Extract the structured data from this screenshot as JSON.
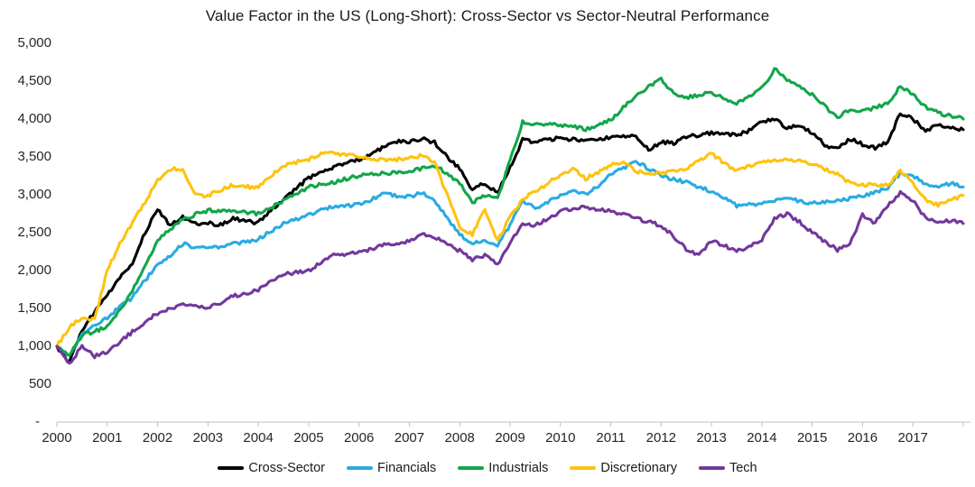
{
  "title": "Value Factor in the US (Long-Short): Cross-Sector vs Sector-Neutral Performance",
  "colors": {
    "background": "#ffffff",
    "axis_line": "#bfbfbf",
    "tick_label": "#262626",
    "title_text": "#1a1a1a"
  },
  "chart_data": {
    "type": "line",
    "title": "Value Factor in the US (Long-Short): Cross-Sector vs Sector-Neutral Performance",
    "xlabel": "",
    "ylabel": "",
    "grid": false,
    "noise_texture_amplitude": 24,
    "x_axis": {
      "start": 2000,
      "step": 0.25,
      "range": [
        2000,
        2018
      ],
      "tick_labels": [
        "2000",
        "2001",
        "2002",
        "2003",
        "2004",
        "2005",
        "2006",
        "2007",
        "2008",
        "2009",
        "2010",
        "2011",
        "2012",
        "2013",
        "2014",
        "2015",
        "2016",
        "2017"
      ]
    },
    "y_axis": {
      "range": [
        0,
        5000
      ],
      "tick_labels": [
        "5,000",
        "4,500",
        "4,000",
        "3,500",
        "3,000",
        "2,500",
        "2,000",
        "1,500",
        "1,000",
        "500",
        "-"
      ],
      "tick_values": [
        5000,
        4500,
        4000,
        3500,
        3000,
        2500,
        2000,
        1500,
        1000,
        500,
        0
      ]
    },
    "legend": {
      "position": "bottom"
    },
    "series": [
      {
        "name": "Cross-Sector",
        "color": "#000000",
        "values": [
          1000,
          780,
          1225,
          1450,
          1680,
          1900,
          2080,
          2500,
          2810,
          2600,
          2700,
          2620,
          2630,
          2600,
          2690,
          2650,
          2630,
          2790,
          2930,
          3080,
          3225,
          3300,
          3370,
          3420,
          3465,
          3550,
          3630,
          3710,
          3700,
          3740,
          3690,
          3500,
          3345,
          3070,
          3150,
          3030,
          3350,
          3725,
          3700,
          3720,
          3750,
          3730,
          3725,
          3740,
          3750,
          3770,
          3785,
          3585,
          3700,
          3680,
          3760,
          3790,
          3820,
          3800,
          3785,
          3850,
          3965,
          4000,
          3880,
          3920,
          3820,
          3660,
          3605,
          3740,
          3665,
          3620,
          3690,
          4080,
          4000,
          3845,
          3925,
          3880,
          3860
        ]
      },
      {
        "name": "Financials",
        "color": "#29abe2",
        "values": [
          1000,
          870,
          1165,
          1280,
          1370,
          1520,
          1640,
          1870,
          2080,
          2180,
          2355,
          2300,
          2295,
          2320,
          2355,
          2380,
          2415,
          2520,
          2615,
          2680,
          2735,
          2800,
          2855,
          2860,
          2870,
          2940,
          3010,
          2985,
          2975,
          3030,
          2930,
          2700,
          2475,
          2355,
          2395,
          2340,
          2600,
          2915,
          2830,
          2900,
          2990,
          3040,
          3010,
          3120,
          3270,
          3350,
          3430,
          3350,
          3250,
          3200,
          3165,
          3100,
          3045,
          2950,
          2855,
          2870,
          2890,
          2920,
          2950,
          2920,
          2890,
          2900,
          2915,
          2950,
          2990,
          3040,
          3095,
          3285,
          3250,
          3150,
          3095,
          3150,
          3105
        ]
      },
      {
        "name": "Industrials",
        "color": "#12a64a",
        "values": [
          1000,
          900,
          1140,
          1200,
          1250,
          1480,
          1725,
          2060,
          2395,
          2540,
          2675,
          2740,
          2795,
          2790,
          2780,
          2765,
          2750,
          2830,
          2915,
          3010,
          3105,
          3135,
          3165,
          3210,
          3250,
          3270,
          3285,
          3300,
          3310,
          3350,
          3390,
          3280,
          3165,
          2900,
          2990,
          2950,
          3450,
          3965,
          3940,
          3930,
          3925,
          3900,
          3865,
          3920,
          3985,
          4150,
          4320,
          4420,
          4535,
          4330,
          4285,
          4320,
          4355,
          4280,
          4200,
          4300,
          4405,
          4660,
          4520,
          4420,
          4320,
          4170,
          4020,
          4130,
          4105,
          4150,
          4200,
          4440,
          4320,
          4165,
          4080,
          4040,
          4000
        ]
      },
      {
        "name": "Discretionary",
        "color": "#fec30f",
        "values": [
          1000,
          1250,
          1380,
          1350,
          2000,
          2350,
          2630,
          2900,
          3190,
          3340,
          3345,
          3000,
          2990,
          3060,
          3130,
          3110,
          3095,
          3240,
          3390,
          3430,
          3465,
          3550,
          3545,
          3530,
          3510,
          3480,
          3450,
          3465,
          3480,
          3520,
          3425,
          3000,
          2570,
          2475,
          2810,
          2400,
          2700,
          2950,
          3035,
          3150,
          3270,
          3345,
          3210,
          3300,
          3390,
          3440,
          3310,
          3290,
          3285,
          3320,
          3345,
          3450,
          3545,
          3420,
          3310,
          3380,
          3450,
          3460,
          3465,
          3440,
          3405,
          3340,
          3270,
          3150,
          3130,
          3130,
          3130,
          3310,
          3150,
          2930,
          2870,
          2940,
          2990
        ]
      },
      {
        "name": "Tech",
        "color": "#73389b",
        "values": [
          1000,
          760,
          1010,
          870,
          930,
          1060,
          1190,
          1320,
          1440,
          1500,
          1560,
          1530,
          1500,
          1580,
          1660,
          1700,
          1740,
          1870,
          1950,
          1975,
          2000,
          2100,
          2200,
          2220,
          2240,
          2290,
          2335,
          2360,
          2380,
          2480,
          2440,
          2350,
          2260,
          2150,
          2200,
          2080,
          2350,
          2630,
          2595,
          2690,
          2775,
          2820,
          2830,
          2810,
          2795,
          2740,
          2690,
          2640,
          2595,
          2450,
          2280,
          2200,
          2395,
          2330,
          2260,
          2320,
          2415,
          2690,
          2750,
          2640,
          2500,
          2380,
          2275,
          2350,
          2735,
          2630,
          2855,
          3025,
          2930,
          2690,
          2630,
          2660,
          2620
        ]
      }
    ]
  }
}
